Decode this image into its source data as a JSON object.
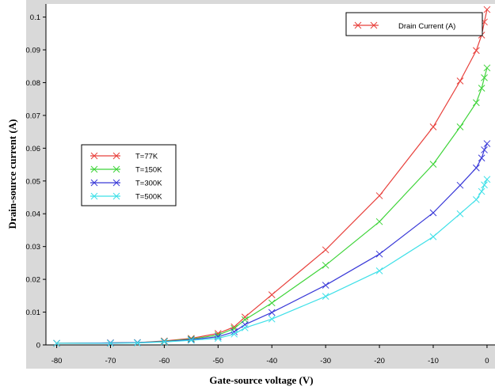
{
  "chart_data": {
    "type": "line",
    "xlabel": "Gate-source voltage (V)",
    "ylabel": "Drain-source current (A)",
    "xlim": [
      -82,
      0.6
    ],
    "ylim": [
      0,
      0.104
    ],
    "x_ticks": [
      -80,
      -70,
      -60,
      -50,
      -40,
      -30,
      -20,
      -10,
      0
    ],
    "y_ticks": [
      0,
      0.01,
      0.02,
      0.03,
      0.04,
      0.05,
      0.06,
      0.07,
      0.08,
      0.09,
      0.1
    ],
    "x_tick_labels": [
      "-80",
      "-70",
      "-60",
      "-50",
      "-40",
      "-30",
      "-20",
      "-10",
      "0"
    ],
    "y_tick_labels": [
      "0",
      "0.01",
      "0.02",
      "0.03",
      "0.04",
      "0.05",
      "0.06",
      "0.07",
      "0.08",
      "0.09",
      "0.1"
    ],
    "grid": false,
    "legend_title_box": {
      "label": "Drain Current (A)",
      "color": "#e8413c",
      "position": "top-right"
    },
    "legend_position": "left-middle",
    "series": [
      {
        "name": "T=77K",
        "color": "#e8413c",
        "x": [
          -80,
          -70,
          -65,
          -60,
          -55,
          -50,
          -47,
          -45,
          -40,
          -30,
          -20,
          -10,
          -5,
          -2,
          -1,
          -0.5,
          0
        ],
        "y": [
          0.0005,
          0.0006,
          0.0007,
          0.0012,
          0.002,
          0.0035,
          0.0055,
          0.0085,
          0.0153,
          0.029,
          0.0455,
          0.0665,
          0.0805,
          0.0898,
          0.0945,
          0.0985,
          0.1023
        ]
      },
      {
        "name": "T=150K",
        "color": "#3fd43a",
        "x": [
          -80,
          -70,
          -65,
          -60,
          -55,
          -50,
          -47,
          -45,
          -40,
          -30,
          -20,
          -10,
          -5,
          -2,
          -1,
          -0.5,
          0
        ],
        "y": [
          0.0005,
          0.0006,
          0.0007,
          0.0011,
          0.0018,
          0.003,
          0.005,
          0.0077,
          0.0128,
          0.0243,
          0.0376,
          0.0551,
          0.0665,
          0.0739,
          0.0783,
          0.0815,
          0.0845
        ]
      },
      {
        "name": "T=300K",
        "color": "#3a3ad8",
        "x": [
          -80,
          -70,
          -65,
          -60,
          -55,
          -50,
          -47,
          -45,
          -40,
          -30,
          -20,
          -10,
          -5,
          -2,
          -1,
          -0.5,
          0
        ],
        "y": [
          0.0005,
          0.0006,
          0.0007,
          0.001,
          0.0016,
          0.0025,
          0.004,
          0.0062,
          0.0099,
          0.0182,
          0.0277,
          0.0403,
          0.0487,
          0.054,
          0.057,
          0.0595,
          0.0614
        ]
      },
      {
        "name": "T=500K",
        "color": "#3fe0e8",
        "x": [
          -80,
          -70,
          -65,
          -60,
          -55,
          -50,
          -47,
          -45,
          -40,
          -30,
          -20,
          -10,
          -5,
          -2,
          -1,
          -0.5,
          0
        ],
        "y": [
          0.0005,
          0.0005,
          0.0006,
          0.0009,
          0.0014,
          0.002,
          0.0033,
          0.0052,
          0.0079,
          0.0148,
          0.0226,
          0.033,
          0.04,
          0.0443,
          0.0468,
          0.0488,
          0.0505
        ]
      }
    ]
  }
}
